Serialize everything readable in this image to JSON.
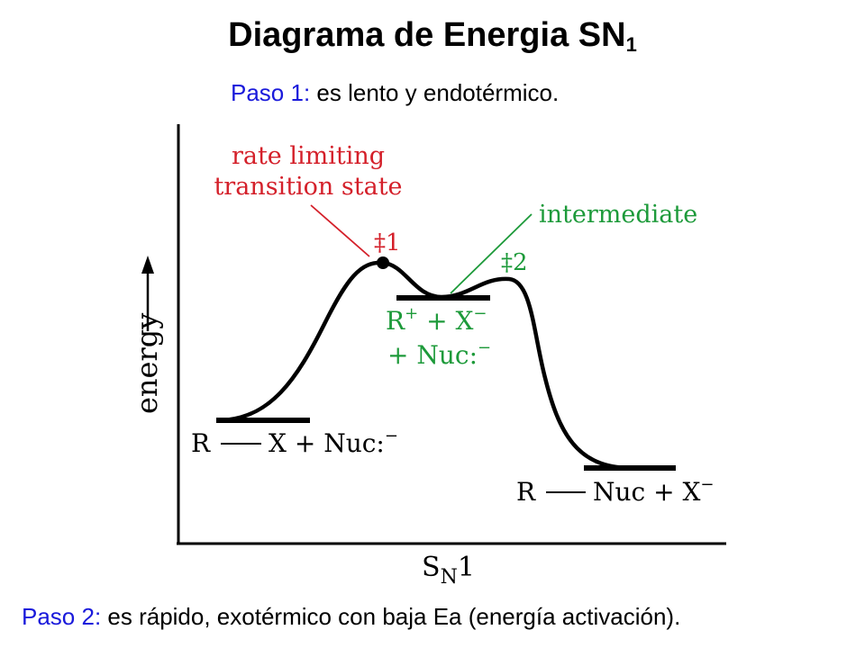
{
  "title": {
    "main": "Diagrama de Energia SN",
    "subscript": "1"
  },
  "step1": {
    "label": "Paso 1:",
    "text": " es lento y endotérmico."
  },
  "step2": {
    "label": "Paso 2:",
    "text": " es rápido, exotérmico con baja Ea (energía activación)."
  },
  "diagram": {
    "y_axis_label": "energy",
    "x_axis_label_main": "S",
    "x_axis_label_sub": "N",
    "x_axis_label_end": "1",
    "annotation_ts_line1": "rate limiting",
    "annotation_ts_line2": "transition state",
    "annotation_intermediate": "intermediate",
    "ts1_label": "‡1",
    "ts2_label": "‡2",
    "reactants": {
      "r": "R",
      "x_nuc": "X + Nuc:",
      "charge": "−"
    },
    "intermediate_species": {
      "line1_r": "R",
      "line1_plus": "+",
      "line1_x": " + X",
      "line1_minus": "−",
      "line2": "+ Nuc:",
      "line2_minus": "−"
    },
    "products": {
      "r": "R",
      "nuc_x": "Nuc + X",
      "charge": "−"
    },
    "colors": {
      "annotation_red": "#d4202a",
      "annotation_green": "#1d9a3a",
      "label_blue": "#1a1adb"
    }
  }
}
